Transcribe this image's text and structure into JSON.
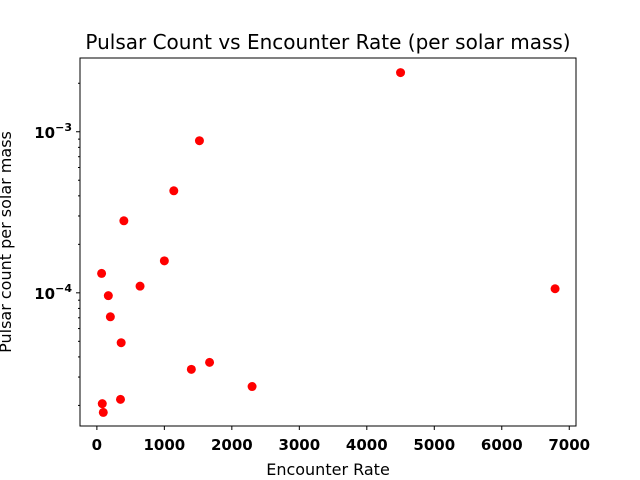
{
  "chart_data": {
    "type": "scatter",
    "title": "Pulsar Count vs Encounter Rate (per solar mass)",
    "xlabel": "Encounter Rate",
    "ylabel": "Pulsar count per solar mass",
    "xlim": [
      -250,
      7100
    ],
    "ylim": [
      1.49e-05,
      0.00287
    ],
    "yscale": "log",
    "grid": false,
    "xticks": [
      0,
      1000,
      2000,
      3000,
      4000,
      5000,
      6000,
      7000
    ],
    "xtick_labels": [
      "0",
      "1000",
      "2000",
      "3000",
      "4000",
      "5000",
      "6000",
      "7000"
    ],
    "yticks": [
      {
        "value": 0.001,
        "base": "10",
        "exp": "−3"
      },
      {
        "value": 0.0001,
        "base": "10",
        "exp": "−4"
      }
    ],
    "marker_color": "#ff0000",
    "series": [
      {
        "points": [
          [
            4500,
            0.00233
          ],
          [
            1520,
            0.00088
          ],
          [
            1140,
            0.00043
          ],
          [
            400,
            0.00028
          ],
          [
            1000,
            0.000158
          ],
          [
            70,
            0.000132
          ],
          [
            640,
            0.00011
          ],
          [
            6790,
            0.000106
          ],
          [
            170,
            9.6e-05
          ],
          [
            200,
            7.1e-05
          ],
          [
            360,
            4.9e-05
          ],
          [
            1670,
            3.7e-05
          ],
          [
            1400,
            3.35e-05
          ],
          [
            2300,
            2.62e-05
          ],
          [
            350,
            2.18e-05
          ],
          [
            80,
            2.05e-05
          ],
          [
            95,
            1.81e-05
          ]
        ]
      }
    ]
  }
}
